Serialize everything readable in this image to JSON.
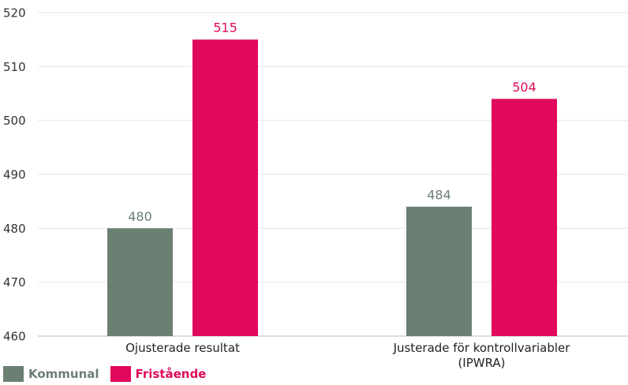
{
  "chart_data": {
    "type": "bar",
    "categories": [
      "Ojusterade resultat",
      "Justerade för kontrollvariabler (IPWRA)"
    ],
    "series": [
      {
        "name": "Kommunal",
        "color": "#6b7f72",
        "values": [
          480,
          484
        ]
      },
      {
        "name": "Fristående",
        "color": "#e0095c",
        "values": [
          515,
          504
        ]
      }
    ],
    "ylim": [
      460,
      520
    ],
    "yticks": [
      460,
      470,
      480,
      490,
      500,
      510,
      520
    ],
    "grid": true,
    "legend": "bottom-left"
  }
}
